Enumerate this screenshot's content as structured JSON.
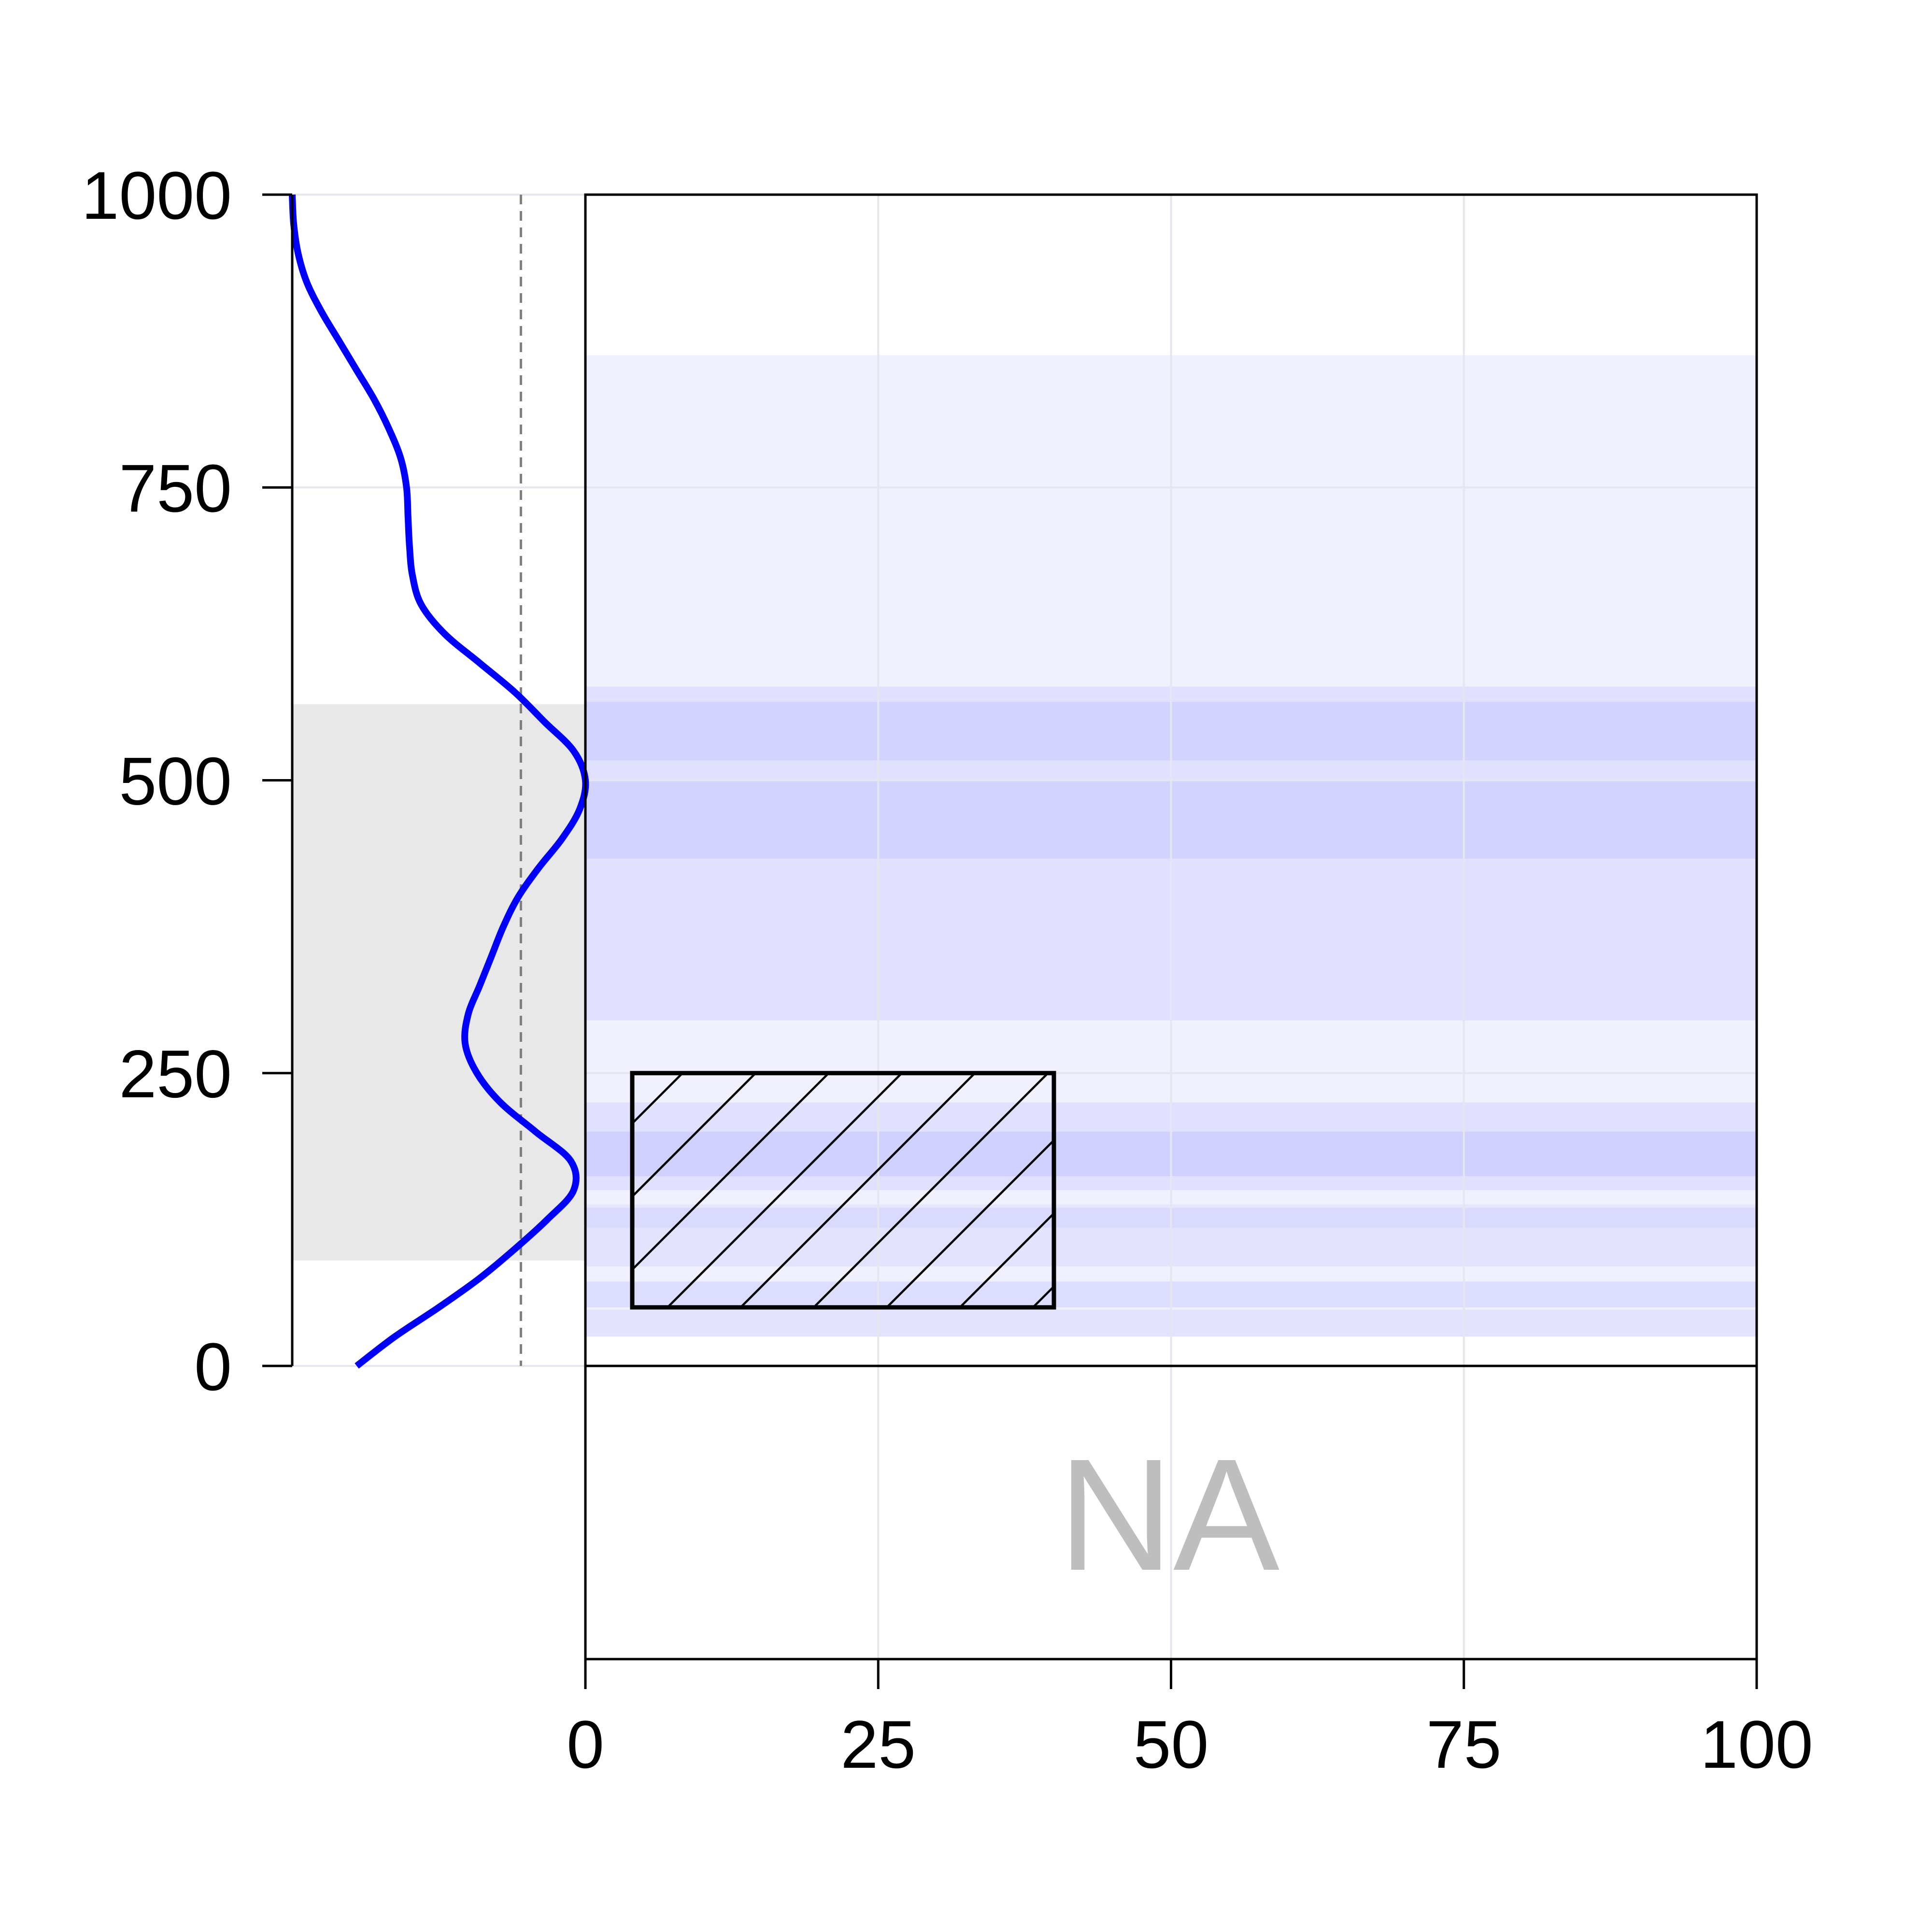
{
  "chart_data": {
    "type": "area",
    "x_axis": {
      "range": [
        0,
        100
      ],
      "ticks": [
        "0",
        "25",
        "50",
        "75",
        "100"
      ]
    },
    "y_axis": {
      "range": [
        0,
        1000
      ],
      "ticks": [
        "0",
        "250",
        "500",
        "750",
        "1000"
      ]
    },
    "grid": true,
    "na_label": "NA",
    "density_curve": {
      "color": "#0000ff",
      "y": [
        0,
        25,
        50,
        75,
        100,
        125,
        150,
        175,
        200,
        225,
        250,
        275,
        300,
        325,
        350,
        375,
        400,
        425,
        450,
        475,
        500,
        525,
        550,
        575,
        600,
        625,
        650,
        675,
        700,
        725,
        750,
        775,
        800,
        825,
        850,
        875,
        900,
        925,
        950,
        975,
        1000
      ],
      "density": [
        0.22,
        0.35,
        0.5,
        0.64,
        0.76,
        0.87,
        0.96,
        0.95,
        0.83,
        0.71,
        0.63,
        0.59,
        0.6,
        0.64,
        0.68,
        0.72,
        0.77,
        0.84,
        0.92,
        0.98,
        1.0,
        0.96,
        0.86,
        0.76,
        0.64,
        0.52,
        0.44,
        0.41,
        0.4,
        0.395,
        0.39,
        0.37,
        0.33,
        0.28,
        0.22,
        0.16,
        0.1,
        0.05,
        0.02,
        0.005,
        0.0
      ],
      "reference_line": 0.78,
      "shaded_interval": [
        90,
        565
      ]
    },
    "horizontal_bands": [
      {
        "y": [
          25,
          863
        ],
        "opacity": 0.06
      },
      {
        "y": [
          25,
          48
        ],
        "opacity": 0.05
      },
      {
        "y": [
          50,
          72
        ],
        "opacity": 0.08
      },
      {
        "y": [
          85,
          135
        ],
        "opacity": 0.05
      },
      {
        "y": [
          118,
          138
        ],
        "opacity": 0.04
      },
      {
        "y": [
          150,
          225
        ],
        "opacity": 0.06
      },
      {
        "y": [
          162,
          200
        ],
        "opacity": 0.07
      },
      {
        "y": [
          295,
          580
        ],
        "opacity": 0.06
      },
      {
        "y": [
          433,
          500
        ],
        "opacity": 0.06
      },
      {
        "y": [
          517,
          567
        ],
        "opacity": 0.06
      }
    ],
    "hatched_rectangle": {
      "x": [
        4,
        40
      ],
      "y": [
        50,
        250
      ]
    }
  }
}
